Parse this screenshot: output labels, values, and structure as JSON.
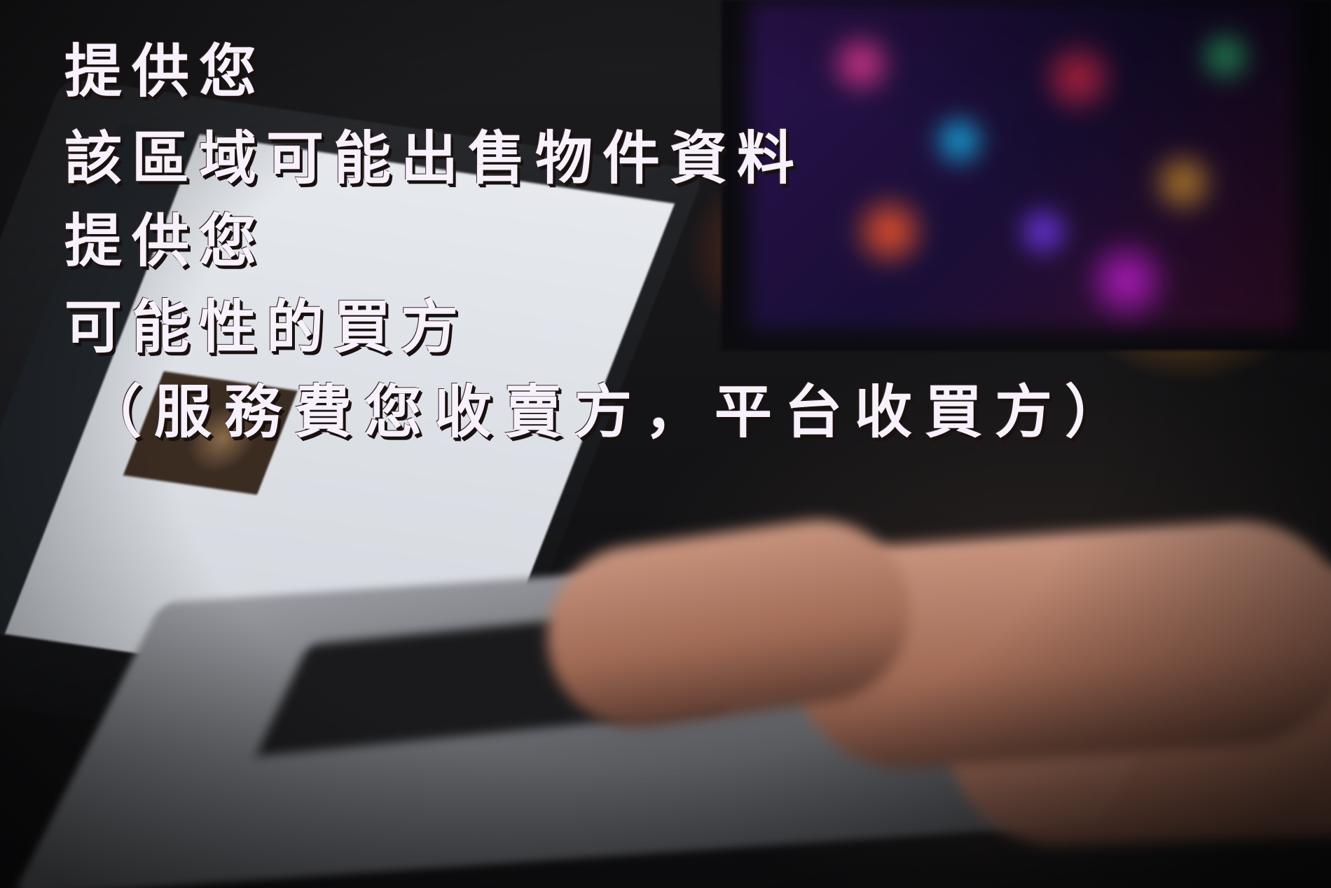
{
  "overlay": {
    "line1": "提供您",
    "line2": "該區域可能出售物件資料",
    "line3": "提供您",
    "line4": "可能性的買方",
    "line5": "（服務費您收賣方，平台收買方）"
  },
  "colors": {
    "caption_text": "#f7f1fb",
    "caption_shadow": "#1a1010"
  }
}
